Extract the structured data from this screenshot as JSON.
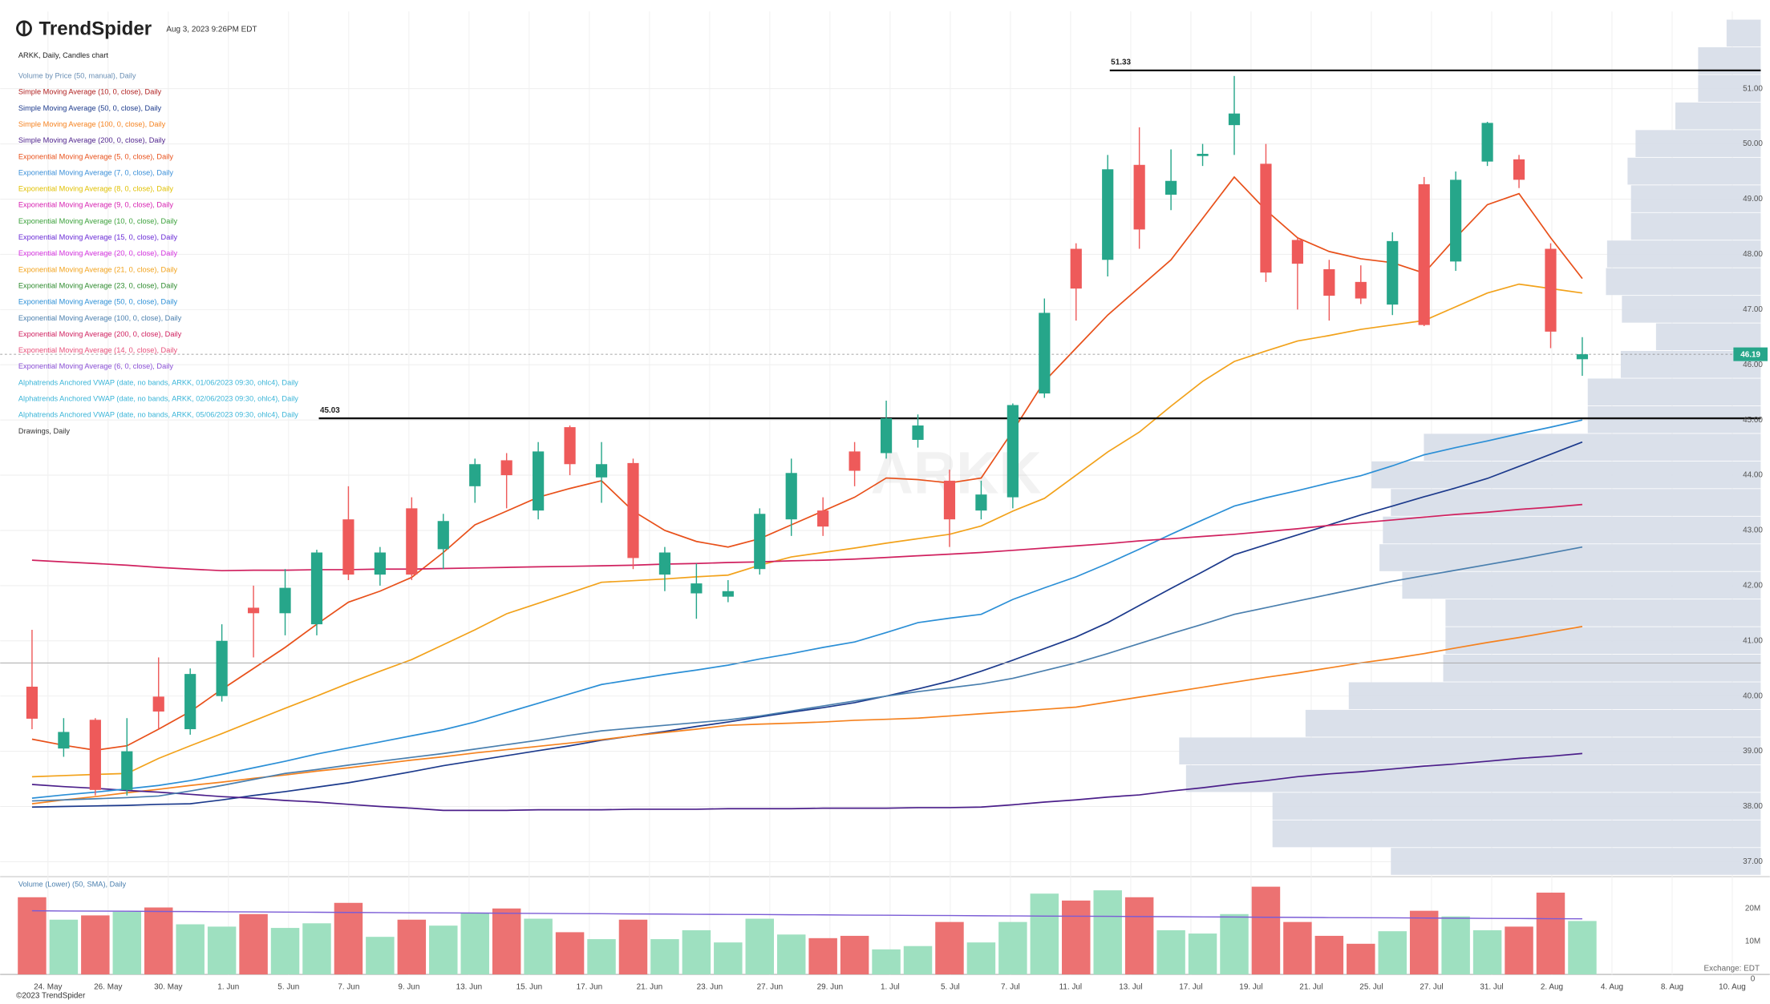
{
  "chart_data": {
    "type": "candlestick",
    "logo": "TrendSpider",
    "timestamp": "Aug 3, 2023 9:26PM EDT",
    "copyright": "©2023 TrendSpider",
    "exchange": "Exchange: EDT",
    "watermark": "ARKK",
    "xticks": [
      "24. May",
      "26. May",
      "30. May",
      "1. Jun",
      "5. Jun",
      "7. Jun",
      "9. Jun",
      "13. Jun",
      "15. Jun",
      "17. Jun",
      "21. Jun",
      "23. Jun",
      "27. Jun",
      "29. Jun",
      "1. Jul",
      "5. Jul",
      "7. Jul",
      "11. Jul",
      "13. Jul",
      "17. Jul",
      "19. Jul",
      "21. Jul",
      "25. Jul",
      "27. Jul",
      "31. Jul",
      "2. Aug",
      "4. Aug",
      "8. Aug",
      "10. Aug"
    ],
    "ylim": [
      36.75,
      52.4
    ],
    "yticks": [
      {
        "value": 37,
        "label": "37.00"
      },
      {
        "value": 38,
        "label": "38.00"
      },
      {
        "value": 39,
        "label": "39.00"
      },
      {
        "value": 40,
        "label": "40.00"
      },
      {
        "value": 41,
        "label": "41.00"
      },
      {
        "value": 42,
        "label": "42.00"
      },
      {
        "value": 43,
        "label": "43.00"
      },
      {
        "value": 44,
        "label": "44.00"
      },
      {
        "value": 45,
        "label": "45.00"
      },
      {
        "value": 46,
        "label": "46.00"
      },
      {
        "value": 47,
        "label": "47.00"
      },
      {
        "value": 48,
        "label": "48.00"
      },
      {
        "value": 49,
        "label": "49.00"
      },
      {
        "value": 50,
        "label": "50.00"
      },
      {
        "value": 51,
        "label": "51.00"
      }
    ],
    "grid": true,
    "up_color": "#26a68a",
    "down_color": "#ee5a5a",
    "open": [
      40.17,
      39.05,
      39.57,
      38.3,
      39.99,
      39.4,
      40.0,
      41.6,
      41.5,
      41.3,
      43.2,
      42.2,
      43.4,
      42.66,
      43.8,
      44.27,
      43.36,
      44.87,
      43.96,
      44.22,
      42.2,
      41.86,
      41.8,
      42.3,
      43.2,
      43.36,
      44.43,
      44.4,
      44.64,
      43.9,
      43.36,
      43.6,
      45.48,
      48.1,
      47.9,
      49.62,
      49.08,
      49.78,
      50.34,
      49.64,
      48.26,
      47.73,
      47.5,
      47.09,
      49.27,
      47.87,
      49.68,
      49.72,
      48.1,
      46.1
    ],
    "high": [
      41.2,
      39.6,
      39.6,
      39.6,
      40.7,
      40.5,
      41.3,
      42.0,
      42.3,
      42.65,
      43.8,
      42.7,
      43.6,
      43.3,
      44.3,
      44.4,
      44.6,
      44.9,
      44.6,
      44.3,
      42.7,
      42.4,
      42.1,
      43.4,
      44.3,
      43.6,
      44.6,
      45.35,
      45.1,
      44.1,
      43.9,
      45.3,
      47.2,
      48.2,
      49.8,
      50.3,
      49.9,
      50.0,
      51.23,
      50.0,
      48.3,
      47.9,
      47.8,
      48.4,
      49.4,
      49.5,
      50.4,
      49.8,
      48.2,
      46.5
    ],
    "low": [
      39.4,
      38.9,
      38.2,
      38.2,
      39.4,
      39.3,
      39.9,
      40.7,
      41.1,
      41.1,
      42.1,
      42.0,
      42.1,
      42.3,
      43.5,
      43.4,
      43.2,
      44.0,
      43.5,
      42.3,
      41.9,
      41.4,
      41.7,
      42.2,
      42.9,
      42.9,
      43.8,
      44.3,
      44.5,
      42.7,
      43.2,
      43.4,
      45.4,
      46.8,
      47.6,
      48.1,
      48.8,
      49.6,
      49.8,
      47.5,
      47.0,
      46.8,
      47.1,
      46.9,
      46.7,
      47.7,
      49.6,
      49.2,
      46.3,
      45.8
    ],
    "close": [
      39.59,
      39.35,
      38.3,
      39.0,
      39.72,
      40.4,
      41.0,
      41.5,
      41.96,
      42.6,
      42.2,
      42.6,
      42.2,
      43.17,
      44.2,
      44.0,
      44.43,
      44.2,
      44.2,
      42.5,
      42.6,
      42.04,
      41.9,
      43.3,
      44.04,
      43.07,
      44.08,
      45.03,
      44.9,
      43.2,
      43.65,
      45.27,
      46.94,
      47.38,
      49.54,
      48.45,
      49.33,
      49.82,
      50.55,
      47.67,
      47.83,
      47.25,
      47.2,
      48.24,
      46.72,
      49.35,
      50.38,
      49.35,
      46.6,
      46.19
    ],
    "last_price": 46.19,
    "last_color": "#26a68a",
    "reference_lines": [
      51.33,
      45.03
    ],
    "gray_line": 40.6,
    "series": [
      {
        "name": "ARKK, Daily, Candles chart",
        "color": "#222222"
      },
      {
        "name": "Volume by Price (50, manual), Daily",
        "color": "#6a8fb5"
      },
      {
        "name": "Simple Moving Average (10, 0, close), Daily",
        "color": "#b02020"
      },
      {
        "name": "Simple Moving Average (50, 0, close), Daily",
        "color": "#1c3a8c",
        "values": [
          37.99,
          38.0,
          38.01,
          38.02,
          38.04,
          38.05,
          38.12,
          38.2,
          38.27,
          38.35,
          38.43,
          38.53,
          38.63,
          38.74,
          38.83,
          38.92,
          39.01,
          39.1,
          39.2,
          39.28,
          39.36,
          39.45,
          39.53,
          39.62,
          39.71,
          39.79,
          39.88,
          40.0,
          40.13,
          40.27,
          40.45,
          40.65,
          40.86,
          41.07,
          41.33,
          41.64,
          41.95,
          42.25,
          42.56,
          42.74,
          42.92,
          43.1,
          43.28,
          43.44,
          43.61,
          43.77,
          43.94,
          44.16,
          44.38,
          44.6
        ]
      },
      {
        "name": "Simple Moving Average (100, 0, close), Daily",
        "color": "#f5821f",
        "values": [
          38.05,
          38.12,
          38.18,
          38.25,
          38.31,
          38.38,
          38.44,
          38.51,
          38.57,
          38.64,
          38.7,
          38.77,
          38.84,
          38.9,
          38.97,
          39.03,
          39.09,
          39.15,
          39.21,
          39.28,
          39.34,
          39.4,
          39.47,
          39.49,
          39.51,
          39.53,
          39.56,
          39.58,
          39.6,
          39.64,
          39.68,
          39.72,
          39.76,
          39.8,
          39.89,
          39.98,
          40.07,
          40.16,
          40.25,
          40.34,
          40.42,
          40.51,
          40.6,
          40.68,
          40.77,
          40.87,
          40.97,
          41.06,
          41.16,
          41.26
        ]
      },
      {
        "name": "Simple Moving Average (200, 0, close), Daily",
        "color": "#4b1f8a",
        "values": [
          38.4,
          38.36,
          38.33,
          38.29,
          38.26,
          38.22,
          38.18,
          38.15,
          38.11,
          38.08,
          38.04,
          38.0,
          37.97,
          37.93,
          37.93,
          37.93,
          37.94,
          37.94,
          37.94,
          37.95,
          37.95,
          37.95,
          37.96,
          37.96,
          37.96,
          37.97,
          37.97,
          37.97,
          37.98,
          37.98,
          37.99,
          38.03,
          38.08,
          38.12,
          38.17,
          38.21,
          38.28,
          38.34,
          38.41,
          38.47,
          38.54,
          38.59,
          38.63,
          38.68,
          38.73,
          38.77,
          38.82,
          38.87,
          38.91,
          38.96
        ]
      },
      {
        "name": "Exponential Moving Average (5, 0, close), Daily",
        "color": "#e8501a",
        "values": [
          39.22,
          39.11,
          39.02,
          39.1,
          39.4,
          39.72,
          40.12,
          40.5,
          40.88,
          41.3,
          41.7,
          41.9,
          42.15,
          42.6,
          43.1,
          43.35,
          43.6,
          43.76,
          43.9,
          43.35,
          43.0,
          42.8,
          42.7,
          42.85,
          43.1,
          43.35,
          43.6,
          43.95,
          43.92,
          43.86,
          43.95,
          44.8,
          45.7,
          46.3,
          46.9,
          47.4,
          47.9,
          48.65,
          49.4,
          48.8,
          48.3,
          48.05,
          47.92,
          47.85,
          47.66,
          48.3,
          48.9,
          49.1,
          48.3,
          47.56
        ]
      },
      {
        "name": "Exponential Moving Average (7, 0, close), Daily",
        "color": "#3a8fd8"
      },
      {
        "name": "Exponential Moving Average (8, 0, close), Daily",
        "color": "#e0c000"
      },
      {
        "name": "Exponential Moving Average (9, 0, close), Daily",
        "color": "#d61fb0"
      },
      {
        "name": "Exponential Moving Average (10, 0, close), Daily",
        "color": "#3aa03a"
      },
      {
        "name": "Exponential Moving Average (15, 0, close), Daily",
        "color": "#6a2bd6"
      },
      {
        "name": "Exponential Moving Average (20, 0, close), Daily",
        "color": "#d633e0"
      },
      {
        "name": "Exponential Moving Average (21, 0, close), Daily",
        "color": "#f2a21b",
        "values": [
          38.54,
          38.56,
          38.58,
          38.6,
          38.87,
          39.1,
          39.32,
          39.55,
          39.78,
          40.0,
          40.23,
          40.45,
          40.66,
          40.93,
          41.2,
          41.49,
          41.68,
          41.87,
          42.06,
          42.09,
          42.12,
          42.16,
          42.19,
          42.37,
          42.52,
          42.6,
          42.68,
          42.77,
          42.85,
          42.93,
          43.08,
          43.35,
          43.58,
          44.0,
          44.42,
          44.78,
          45.25,
          45.7,
          46.06,
          46.25,
          46.43,
          46.53,
          46.64,
          46.72,
          46.8,
          47.05,
          47.3,
          47.46,
          47.38,
          47.3
        ]
      },
      {
        "name": "Exponential Moving Average (23, 0, close), Daily",
        "color": "#2e8b2e"
      },
      {
        "name": "Exponential Moving Average (50, 0, close), Daily",
        "color": "#2b8fd6",
        "values": [
          38.15,
          38.21,
          38.26,
          38.32,
          38.38,
          38.47,
          38.58,
          38.7,
          38.82,
          38.95,
          39.06,
          39.17,
          39.28,
          39.39,
          39.53,
          39.7,
          39.87,
          40.04,
          40.21,
          40.3,
          40.39,
          40.47,
          40.56,
          40.67,
          40.77,
          40.88,
          40.98,
          41.15,
          41.33,
          41.41,
          41.48,
          41.75,
          41.96,
          42.16,
          42.4,
          42.66,
          42.93,
          43.19,
          43.44,
          43.59,
          43.72,
          43.86,
          43.99,
          44.17,
          44.37,
          44.5,
          44.62,
          44.75,
          44.87,
          45.0
        ]
      },
      {
        "name": "Exponential Moving Average (100, 0, close), Daily",
        "color": "#4a7fae",
        "values": [
          38.1,
          38.12,
          38.14,
          38.16,
          38.19,
          38.28,
          38.38,
          38.49,
          38.6,
          38.67,
          38.75,
          38.82,
          38.89,
          38.96,
          39.04,
          39.12,
          39.2,
          39.29,
          39.37,
          39.42,
          39.47,
          39.52,
          39.57,
          39.64,
          39.73,
          39.82,
          39.91,
          40.0,
          40.08,
          40.15,
          40.22,
          40.32,
          40.46,
          40.6,
          40.77,
          40.95,
          41.13,
          41.3,
          41.48,
          41.6,
          41.72,
          41.84,
          41.96,
          42.08,
          42.18,
          42.28,
          42.38,
          42.48,
          42.59,
          42.7
        ]
      },
      {
        "name": "Exponential Moving Average (200, 0, close), Daily",
        "color": "#d0215f",
        "values": [
          42.46,
          42.43,
          42.4,
          42.37,
          42.33,
          42.3,
          42.27,
          42.28,
          42.28,
          42.29,
          42.29,
          42.3,
          42.3,
          42.31,
          42.32,
          42.33,
          42.34,
          42.35,
          42.36,
          42.37,
          42.39,
          42.4,
          42.42,
          42.43,
          42.45,
          42.46,
          42.48,
          42.51,
          42.54,
          42.57,
          42.6,
          42.64,
          42.68,
          42.72,
          42.76,
          42.81,
          42.85,
          42.89,
          42.93,
          42.98,
          43.03,
          43.09,
          43.14,
          43.19,
          43.24,
          43.29,
          43.33,
          43.38,
          43.42,
          43.47
        ]
      },
      {
        "name": "Exponential Moving Average (14, 0, close), Daily",
        "color": "#e8507a"
      },
      {
        "name": "Exponential Moving Average (6, 0, close), Daily",
        "color": "#8a4fd6"
      },
      {
        "name": "Alphatrends Anchored VWAP (date, no bands, ARKK, 01/06/2023 09:30, ohlc4), Daily",
        "color": "#3bb5d8"
      },
      {
        "name": "Alphatrends Anchored VWAP (date, no bands, ARKK, 02/06/2023 09:30, ohlc4), Daily",
        "color": "#3bb5d8"
      },
      {
        "name": "Alphatrends Anchored VWAP (date, no bands, ARKK, 05/06/2023 09:30, ohlc4), Daily",
        "color": "#3bb5d8"
      },
      {
        "name": "Drawings, Daily",
        "color": "#333333"
      }
    ],
    "volume_profile": {
      "color": "#d6dde8",
      "bins": [
        36.75,
        37.25,
        37.75,
        38.25,
        38.75,
        39.25,
        39.75,
        40.25,
        40.75,
        41.25,
        41.75,
        42.25,
        42.75,
        43.25,
        43.75,
        44.25,
        44.75,
        45.25,
        45.75,
        46.25,
        46.75,
        47.25,
        47.75,
        48.25,
        48.75,
        49.25,
        49.75,
        50.25,
        50.75,
        51.25,
        51.75,
        52.25
      ],
      "values": [
        325,
        429,
        429,
        505,
        511,
        400,
        362,
        279,
        277,
        277,
        315,
        335,
        332,
        325,
        342,
        296,
        152,
        152,
        123,
        92,
        122,
        136,
        135,
        114,
        114,
        117,
        110,
        75,
        55,
        55,
        30
      ]
    },
    "volume": {
      "name": "Volume (Lower) (50, SMA), Daily",
      "up_color": "#9ee0c0",
      "down_color": "#ec7272",
      "ylim": [
        0,
        29300000
      ],
      "yticks": [
        {
          "value": 20000000,
          "label": "20M"
        },
        {
          "value": 10000000,
          "label": "10M"
        },
        0
      ],
      "values": [
        23400000,
        16600000,
        17900000,
        19000000,
        20300000,
        15200000,
        14500000,
        18300000,
        14100000,
        15500000,
        21700000,
        11400000,
        16600000,
        14800000,
        18600000,
        20000000,
        16900000,
        12800000,
        10700000,
        16600000,
        10700000,
        13400000,
        9700000,
        16900000,
        12100000,
        11000000,
        11700000,
        7600000,
        8600000,
        15900000,
        9700000,
        15900000,
        24500000,
        22400000,
        25500000,
        23400000,
        13400000,
        12400000,
        18300000,
        26600000,
        15900000,
        11700000,
        9300000,
        13100000,
        19300000,
        17600000,
        13400000,
        14500000,
        24800000,
        16200000
      ],
      "sma": {
        "color": "#7b5cd6",
        "values": [
          19300000,
          19250000,
          19200000,
          19150000,
          19100000,
          19050000,
          19000000,
          18950000,
          18900000,
          18850000,
          18800000,
          18750000,
          18700000,
          18650000,
          18600000,
          18550000,
          18500000,
          18450000,
          18400000,
          18350000,
          18300000,
          18250000,
          18200000,
          18150000,
          18100000,
          18050000,
          18000000,
          17950000,
          17900000,
          17850000,
          17800000,
          17750000,
          17700000,
          17650000,
          17600000,
          17550000,
          17500000,
          17450000,
          17400000,
          17350000,
          17300000,
          17250000,
          17200000,
          17150000,
          17100000,
          17050000,
          17000000,
          16950000,
          16900000,
          16850000
        ]
      }
    }
  }
}
